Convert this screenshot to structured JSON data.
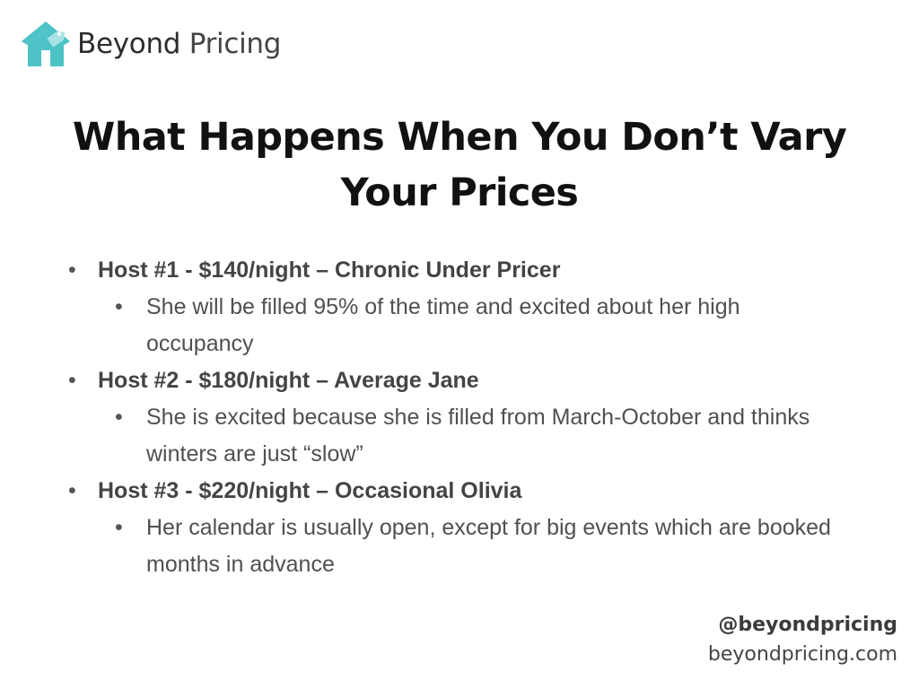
{
  "brand": {
    "name_part1": "Beyond",
    "name_part2": "Pricing",
    "logo_icon": "house-tag-icon",
    "logo_color": "#4ec3c7"
  },
  "slide": {
    "title_line1": "What Happens When You Don’t Vary",
    "title_line2": "Your Prices",
    "bullets": [
      {
        "heading": "Host #1 - $140/night – Chronic Under Pricer",
        "detail": "She will be filled 95% of the time and excited about her high occupancy"
      },
      {
        "heading": "Host #2 - $180/night – Average Jane",
        "detail": "She is excited because she is filled from March-October and thinks winters are just “slow”"
      },
      {
        "heading": "Host #3 - $220/night – Occasional Olivia",
        "detail": "Her calendar is usually open, except for big events which are booked months in advance"
      }
    ],
    "bullet_glyph": "•"
  },
  "footer": {
    "handle": "@beyondpricing",
    "website": "beyondpricing.com"
  }
}
